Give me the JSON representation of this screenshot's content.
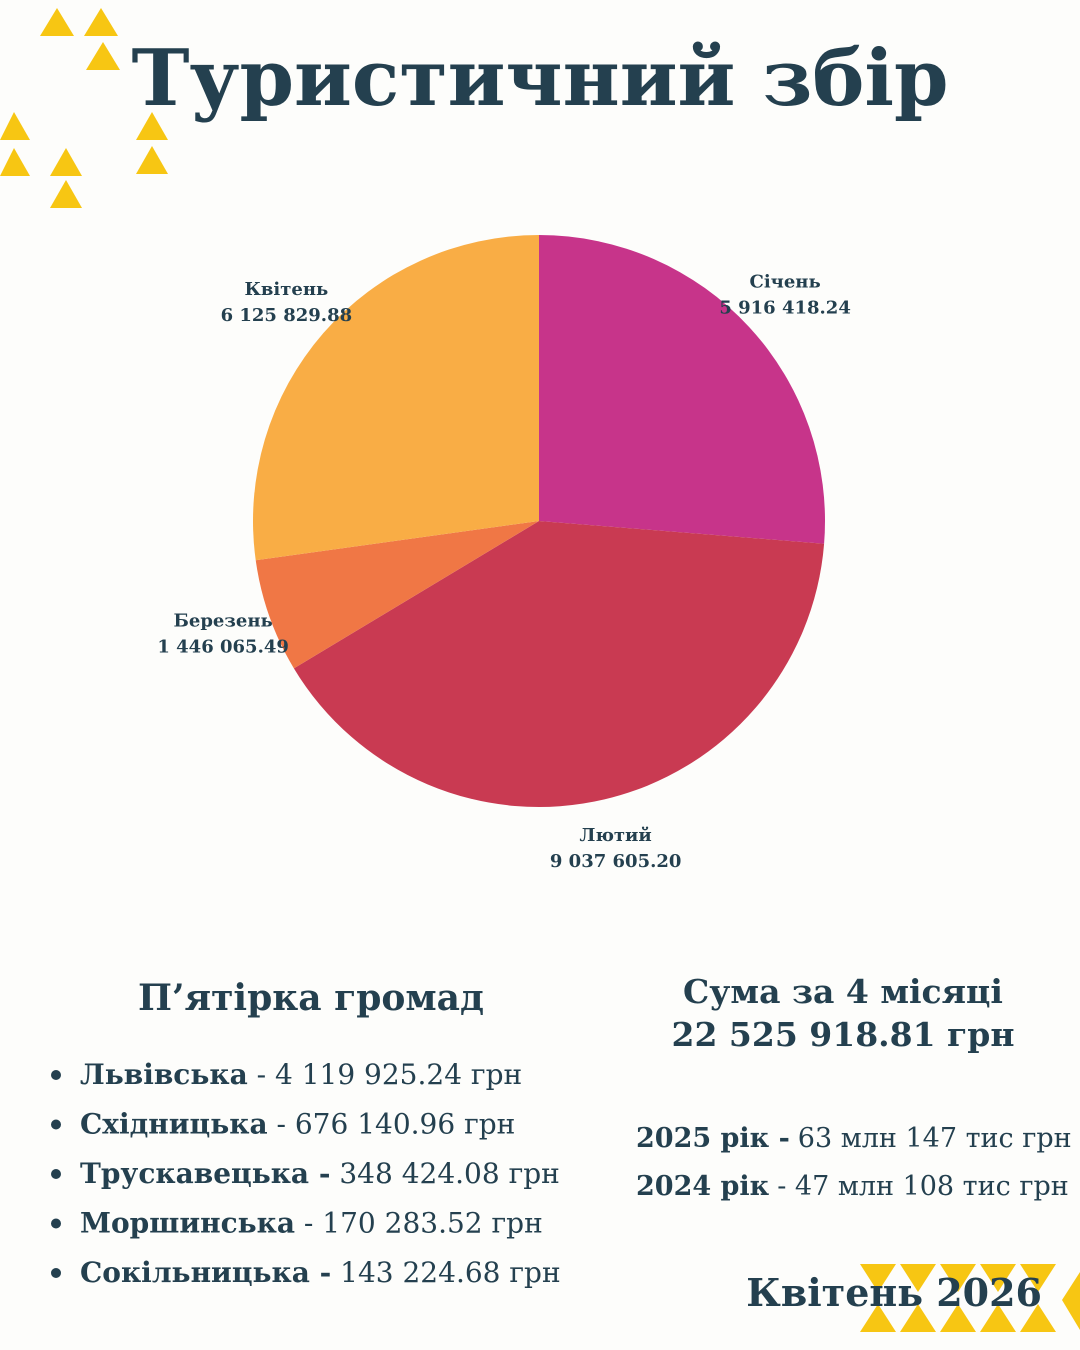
{
  "chart_data": {
    "type": "pie",
    "title": "Туристичний збір",
    "categories": [
      "Січень",
      "Лютий",
      "Березень",
      "Квітень"
    ],
    "values": [
      5916418.24,
      9037605.2,
      1446065.49,
      6125829.88
    ],
    "value_labels": [
      "5 916 418.24",
      "9 037 605.20",
      "1 446 065.49",
      "6 125 829.88"
    ],
    "colors": [
      "#c7348a",
      "#c93a52",
      "#f07745",
      "#f9ad45"
    ]
  },
  "communities": {
    "heading": "П’ятірка громад",
    "items": [
      {
        "name": "Львівська",
        "amount": "- 4 119 925.24 грн"
      },
      {
        "name": "Східницька",
        "amount": "- 676 140.96 грн"
      },
      {
        "name": "Трускавецька -",
        "amount": "348 424.08 грн"
      },
      {
        "name": "Моршинська",
        "amount": "- 170 283.52 грн"
      },
      {
        "name": "Сокільницька -",
        "amount": "143 224.68 грн"
      }
    ]
  },
  "total": {
    "heading": "Сума за 4 місяці",
    "amount": "22 525 918.81 грн"
  },
  "years": [
    {
      "year": "2025 рік -",
      "amount": "63 млн 147 тис грн"
    },
    {
      "year": "2024 рік",
      "amount": "- 47 млн 108 тис грн"
    }
  ],
  "footer": "Квітень 2026"
}
